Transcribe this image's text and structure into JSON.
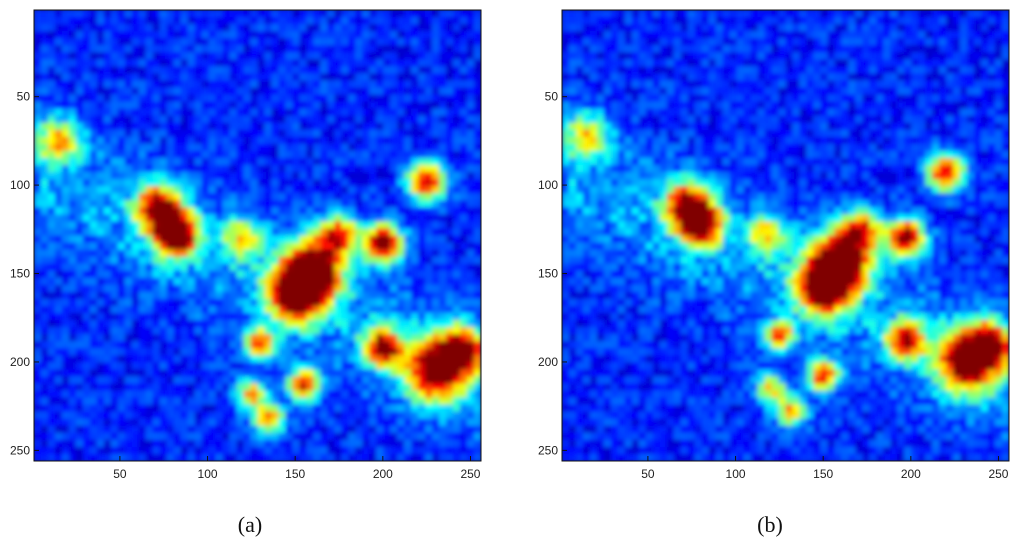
{
  "chart_data": [
    {
      "type": "heatmap",
      "caption": "(a)",
      "colormap": "jet",
      "xlim": [
        1,
        256
      ],
      "ylim": [
        1,
        256
      ],
      "y_reversed": true,
      "xticks": [
        50,
        100,
        150,
        200,
        250
      ],
      "yticks": [
        50,
        100,
        150,
        200,
        250
      ],
      "hotspots": [
        {
          "x": 82,
          "y": 128,
          "v": 1.0,
          "s": 6
        },
        {
          "x": 72,
          "y": 112,
          "v": 0.8,
          "s": 6
        },
        {
          "x": 160,
          "y": 148,
          "v": 1.0,
          "s": 8
        },
        {
          "x": 150,
          "y": 162,
          "v": 0.95,
          "s": 7
        },
        {
          "x": 200,
          "y": 133,
          "v": 0.95,
          "s": 5
        },
        {
          "x": 225,
          "y": 98,
          "v": 0.85,
          "s": 5
        },
        {
          "x": 230,
          "y": 205,
          "v": 0.9,
          "s": 8
        },
        {
          "x": 245,
          "y": 193,
          "v": 0.8,
          "s": 6
        },
        {
          "x": 200,
          "y": 192,
          "v": 0.85,
          "s": 5
        },
        {
          "x": 155,
          "y": 213,
          "v": 0.8,
          "s": 4
        },
        {
          "x": 130,
          "y": 190,
          "v": 0.7,
          "s": 4
        },
        {
          "x": 175,
          "y": 128,
          "v": 0.7,
          "s": 5
        },
        {
          "x": 135,
          "y": 232,
          "v": 0.65,
          "s": 4
        },
        {
          "x": 125,
          "y": 218,
          "v": 0.55,
          "s": 4
        },
        {
          "x": 120,
          "y": 130,
          "v": 0.5,
          "s": 5
        },
        {
          "x": 15,
          "y": 75,
          "v": 0.5,
          "s": 6
        }
      ]
    },
    {
      "type": "heatmap",
      "caption": "(b)",
      "colormap": "jet",
      "xlim": [
        1,
        256
      ],
      "ylim": [
        1,
        256
      ],
      "y_reversed": true,
      "xticks": [
        50,
        100,
        150,
        200,
        250
      ],
      "yticks": [
        50,
        100,
        150,
        200,
        250
      ],
      "hotspots": [
        {
          "x": 80,
          "y": 122,
          "v": 0.9,
          "s": 6
        },
        {
          "x": 72,
          "y": 110,
          "v": 0.7,
          "s": 6
        },
        {
          "x": 160,
          "y": 143,
          "v": 1.0,
          "s": 8
        },
        {
          "x": 150,
          "y": 158,
          "v": 0.9,
          "s": 7
        },
        {
          "x": 197,
          "y": 130,
          "v": 0.9,
          "s": 5
        },
        {
          "x": 220,
          "y": 93,
          "v": 0.8,
          "s": 5
        },
        {
          "x": 232,
          "y": 200,
          "v": 0.9,
          "s": 8
        },
        {
          "x": 245,
          "y": 190,
          "v": 0.75,
          "s": 6
        },
        {
          "x": 197,
          "y": 188,
          "v": 0.8,
          "s": 5
        },
        {
          "x": 150,
          "y": 208,
          "v": 0.75,
          "s": 4
        },
        {
          "x": 125,
          "y": 185,
          "v": 0.65,
          "s": 4
        },
        {
          "x": 172,
          "y": 125,
          "v": 0.65,
          "s": 5
        },
        {
          "x": 132,
          "y": 228,
          "v": 0.6,
          "s": 4
        },
        {
          "x": 120,
          "y": 215,
          "v": 0.5,
          "s": 4
        },
        {
          "x": 118,
          "y": 128,
          "v": 0.5,
          "s": 5
        },
        {
          "x": 15,
          "y": 72,
          "v": 0.45,
          "s": 6
        }
      ]
    }
  ]
}
